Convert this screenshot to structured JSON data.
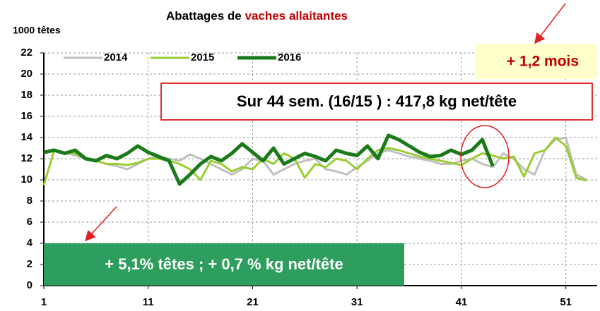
{
  "chart_data": {
    "type": "line",
    "title_parts": [
      "Abattages de",
      "vaches allaitantes"
    ],
    "title_colors": [
      "#000000",
      "#c00000"
    ],
    "y_label": "1000 têtes",
    "xlim": [
      1,
      54
    ],
    "xticks": [
      1,
      11,
      21,
      31,
      41,
      51
    ],
    "ylim": [
      0,
      22
    ],
    "yticks": [
      0,
      2,
      4,
      6,
      8,
      10,
      12,
      14,
      16,
      18,
      20,
      22
    ],
    "grid": true,
    "x": [
      1,
      2,
      3,
      4,
      5,
      6,
      7,
      8,
      9,
      10,
      11,
      12,
      13,
      14,
      15,
      16,
      17,
      18,
      19,
      20,
      21,
      22,
      23,
      24,
      25,
      26,
      27,
      28,
      29,
      30,
      31,
      32,
      33,
      34,
      35,
      36,
      37,
      38,
      39,
      40,
      41,
      42,
      43,
      44,
      45,
      46,
      47,
      48,
      49,
      50,
      51,
      52,
      53
    ],
    "series": [
      {
        "name": "2014",
        "color": "#c0c0c0",
        "values": [
          12.5,
          12.8,
          12.6,
          12.3,
          12.0,
          11.8,
          11.5,
          11.3,
          11.0,
          11.5,
          12.0,
          12.2,
          12.0,
          11.8,
          12.4,
          12.0,
          11.5,
          11.0,
          10.5,
          11.0,
          12.0,
          11.8,
          10.5,
          11.0,
          11.5,
          11.8,
          12.0,
          11.0,
          10.8,
          10.5,
          11.2,
          11.8,
          12.5,
          12.8,
          12.5,
          12.2,
          12.0,
          11.8,
          11.5,
          11.5,
          11.8,
          12.0,
          11.5,
          11.2,
          12.5,
          12.0,
          11.0,
          10.5,
          12.8,
          13.8,
          14.0,
          10.5,
          10.0
        ]
      },
      {
        "name": "2015",
        "color": "#9acd32",
        "values": [
          9.5,
          12.8,
          12.6,
          12.5,
          12.0,
          11.8,
          11.5,
          11.5,
          11.4,
          11.6,
          12.0,
          12.0,
          11.8,
          11.5,
          11.0,
          10.0,
          11.8,
          11.5,
          10.8,
          11.2,
          11.0,
          12.0,
          11.5,
          12.5,
          12.0,
          10.2,
          11.5,
          11.2,
          12.0,
          11.8,
          11.0,
          12.0,
          12.8,
          13.0,
          12.8,
          12.5,
          12.2,
          12.0,
          11.8,
          11.6,
          11.4,
          12.0,
          12.5,
          12.3,
          12.0,
          12.2,
          10.3,
          12.5,
          12.8,
          14.0,
          13.2,
          10.2,
          9.9
        ]
      },
      {
        "name": "2016",
        "color": "#1a7a1a",
        "values": [
          12.6,
          12.8,
          12.5,
          12.8,
          12.0,
          11.8,
          12.3,
          12.0,
          12.5,
          13.2,
          12.6,
          12.2,
          11.8,
          9.6,
          10.5,
          11.5,
          12.2,
          11.8,
          12.5,
          13.4,
          12.6,
          11.8,
          13.0,
          11.5,
          12.0,
          12.5,
          12.2,
          11.8,
          12.8,
          12.5,
          12.3,
          13.2,
          12.0,
          14.2,
          13.8,
          13.2,
          12.6,
          12.2,
          12.3,
          12.8,
          12.4,
          12.8,
          13.8,
          11.3,
          null,
          null,
          null,
          null,
          null,
          null,
          null,
          null,
          null
        ]
      }
    ],
    "annotations": [
      "+ 1,2 mois",
      "Sur 44 sem. (16/15 ) : 417,8 kg net/tête",
      "+ 5,1% têtes ; + 0,7 % kg net/tête"
    ]
  }
}
